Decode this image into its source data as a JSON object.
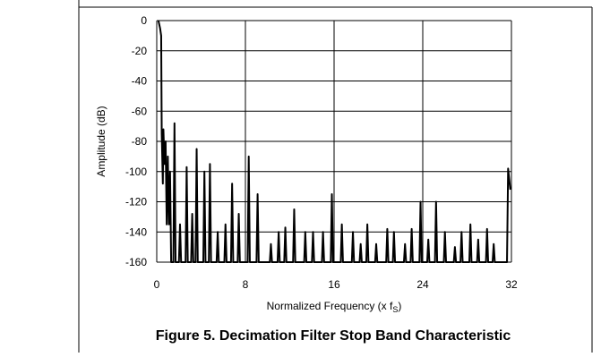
{
  "chart_data": {
    "type": "line",
    "caption": "Figure 5. Decimation Filter Stop Band Characteristic",
    "xlabel": [
      "Normalized Frequency (x f",
      "S",
      ")"
    ],
    "ylabel": "Amplitude (dB)",
    "xlim": [
      0,
      32
    ],
    "xticks": [
      0,
      8,
      16,
      24,
      32
    ],
    "ylim": [
      -160,
      0
    ],
    "yticks": [
      0,
      -20,
      -40,
      -60,
      -80,
      -100,
      -120,
      -140,
      -160
    ],
    "grid": true,
    "color": "#000000",
    "x": [
      0.15,
      0.3,
      0.4,
      0.45,
      0.55,
      0.6,
      0.7,
      0.8,
      0.9,
      1.0,
      1.1,
      1.2,
      1.3,
      1.5,
      1.6,
      1.7,
      2.0,
      2.1,
      2.2,
      2.6,
      2.7,
      2.8,
      3.1,
      3.2,
      3.3,
      3.5,
      3.6,
      3.7,
      4.2,
      4.3,
      4.4,
      4.7,
      4.8,
      4.9,
      5.4,
      5.5,
      5.6,
      6.1,
      6.2,
      6.3,
      6.7,
      6.8,
      6.9,
      7.3,
      7.4,
      7.5,
      8.2,
      8.3,
      8.4,
      9.0,
      9.1,
      9.2,
      10.2,
      10.3,
      10.4,
      10.9,
      11.0,
      11.1,
      11.5,
      11.6,
      11.7,
      12.3,
      12.4,
      12.5,
      13.3,
      13.4,
      13.5,
      14.0,
      14.1,
      14.2,
      14.9,
      15.0,
      15.1,
      15.7,
      15.8,
      15.9,
      16.6,
      16.7,
      16.8,
      17.6,
      17.7,
      17.8,
      18.3,
      18.4,
      18.5,
      18.9,
      19.0,
      19.1,
      19.7,
      19.8,
      19.9,
      20.7,
      20.8,
      20.9,
      21.3,
      21.4,
      21.5,
      22.3,
      22.4,
      22.5,
      22.9,
      23.0,
      23.1,
      23.7,
      23.8,
      23.9,
      24.4,
      24.5,
      24.6,
      25.1,
      25.2,
      25.3,
      25.9,
      26.0,
      26.1,
      26.8,
      26.9,
      27.0,
      27.4,
      27.5,
      27.6,
      28.2,
      28.3,
      28.4,
      28.9,
      29.0,
      29.1,
      29.7,
      29.8,
      29.9,
      30.3,
      30.4,
      30.5,
      31.6,
      31.7,
      31.8,
      31.9
    ],
    "values": [
      0,
      -5,
      -10,
      -75,
      -108,
      -72,
      -95,
      -80,
      -135,
      -90,
      -135,
      -100,
      -160,
      -160,
      -68,
      -160,
      -160,
      -135,
      -160,
      -160,
      -97,
      -160,
      -160,
      -128,
      -160,
      -160,
      -85,
      -160,
      -160,
      -100,
      -160,
      -160,
      -95,
      -160,
      -160,
      -140,
      -160,
      -160,
      -135,
      -160,
      -160,
      -108,
      -160,
      -160,
      -128,
      -160,
      -160,
      -90,
      -160,
      -160,
      -115,
      -160,
      -160,
      -148,
      -160,
      -160,
      -140,
      -160,
      -160,
      -137,
      -160,
      -160,
      -125,
      -160,
      -160,
      -140,
      -160,
      -160,
      -140,
      -160,
      -160,
      -140,
      -160,
      -160,
      -115,
      -160,
      -160,
      -135,
      -160,
      -160,
      -140,
      -160,
      -160,
      -148,
      -160,
      -160,
      -135,
      -160,
      -160,
      -148,
      -160,
      -160,
      -138,
      -160,
      -160,
      -140,
      -160,
      -160,
      -148,
      -160,
      -160,
      -138,
      -160,
      -160,
      -120,
      -160,
      -160,
      -145,
      -160,
      -160,
      -120,
      -160,
      -160,
      -140,
      -160,
      -160,
      -150,
      -160,
      -160,
      -140,
      -160,
      -160,
      -135,
      -160,
      -160,
      -145,
      -160,
      -160,
      -138,
      -160,
      -160,
      -148,
      -160,
      -160,
      -98,
      -105,
      -112
    ]
  }
}
